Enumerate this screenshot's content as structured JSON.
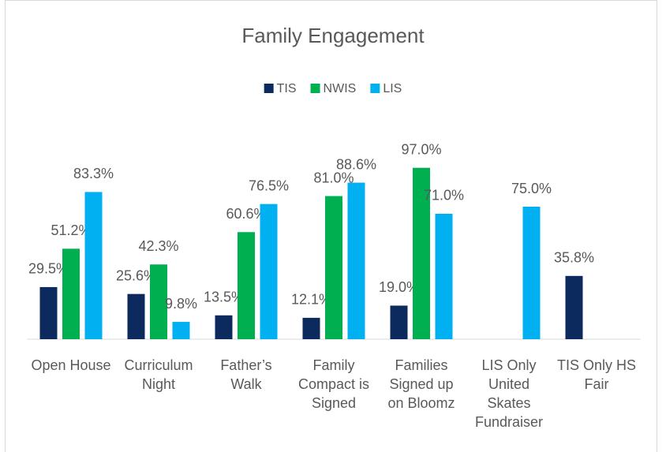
{
  "chart_data": {
    "type": "bar",
    "title": "Family Engagement",
    "categories": [
      "Open House",
      "Curriculum Night",
      "Father’s Walk",
      "Family Compact is Signed",
      "Families Signed up on Bloomz",
      "LIS Only United Skates Fundraiser",
      "TIS Only HS Fair"
    ],
    "series": [
      {
        "name": "TIS",
        "color": "#0c2a5e",
        "values": [
          29.5,
          25.6,
          13.5,
          12.1,
          19.0,
          null,
          35.8
        ],
        "value_labels": [
          "29.5%",
          "25.6%",
          "13.5%",
          "12.1%",
          "19.0%",
          null,
          "35.8%"
        ]
      },
      {
        "name": "NWIS",
        "color": "#00b050",
        "values": [
          51.2,
          42.3,
          60.6,
          81.0,
          97.0,
          null,
          null
        ],
        "value_labels": [
          "51.2%",
          "42.3%",
          "60.6%",
          "81.0%",
          "97.0%",
          null,
          null
        ]
      },
      {
        "name": "LIS",
        "color": "#00b0f0",
        "values": [
          83.3,
          9.8,
          76.5,
          88.6,
          71.0,
          75.0,
          null
        ],
        "value_labels": [
          "83.3%",
          "9.8%",
          "76.5%",
          "88.6%",
          "71.0%",
          "75.0%",
          null
        ]
      }
    ],
    "ylim": [
      0,
      100
    ],
    "legend": "top"
  }
}
